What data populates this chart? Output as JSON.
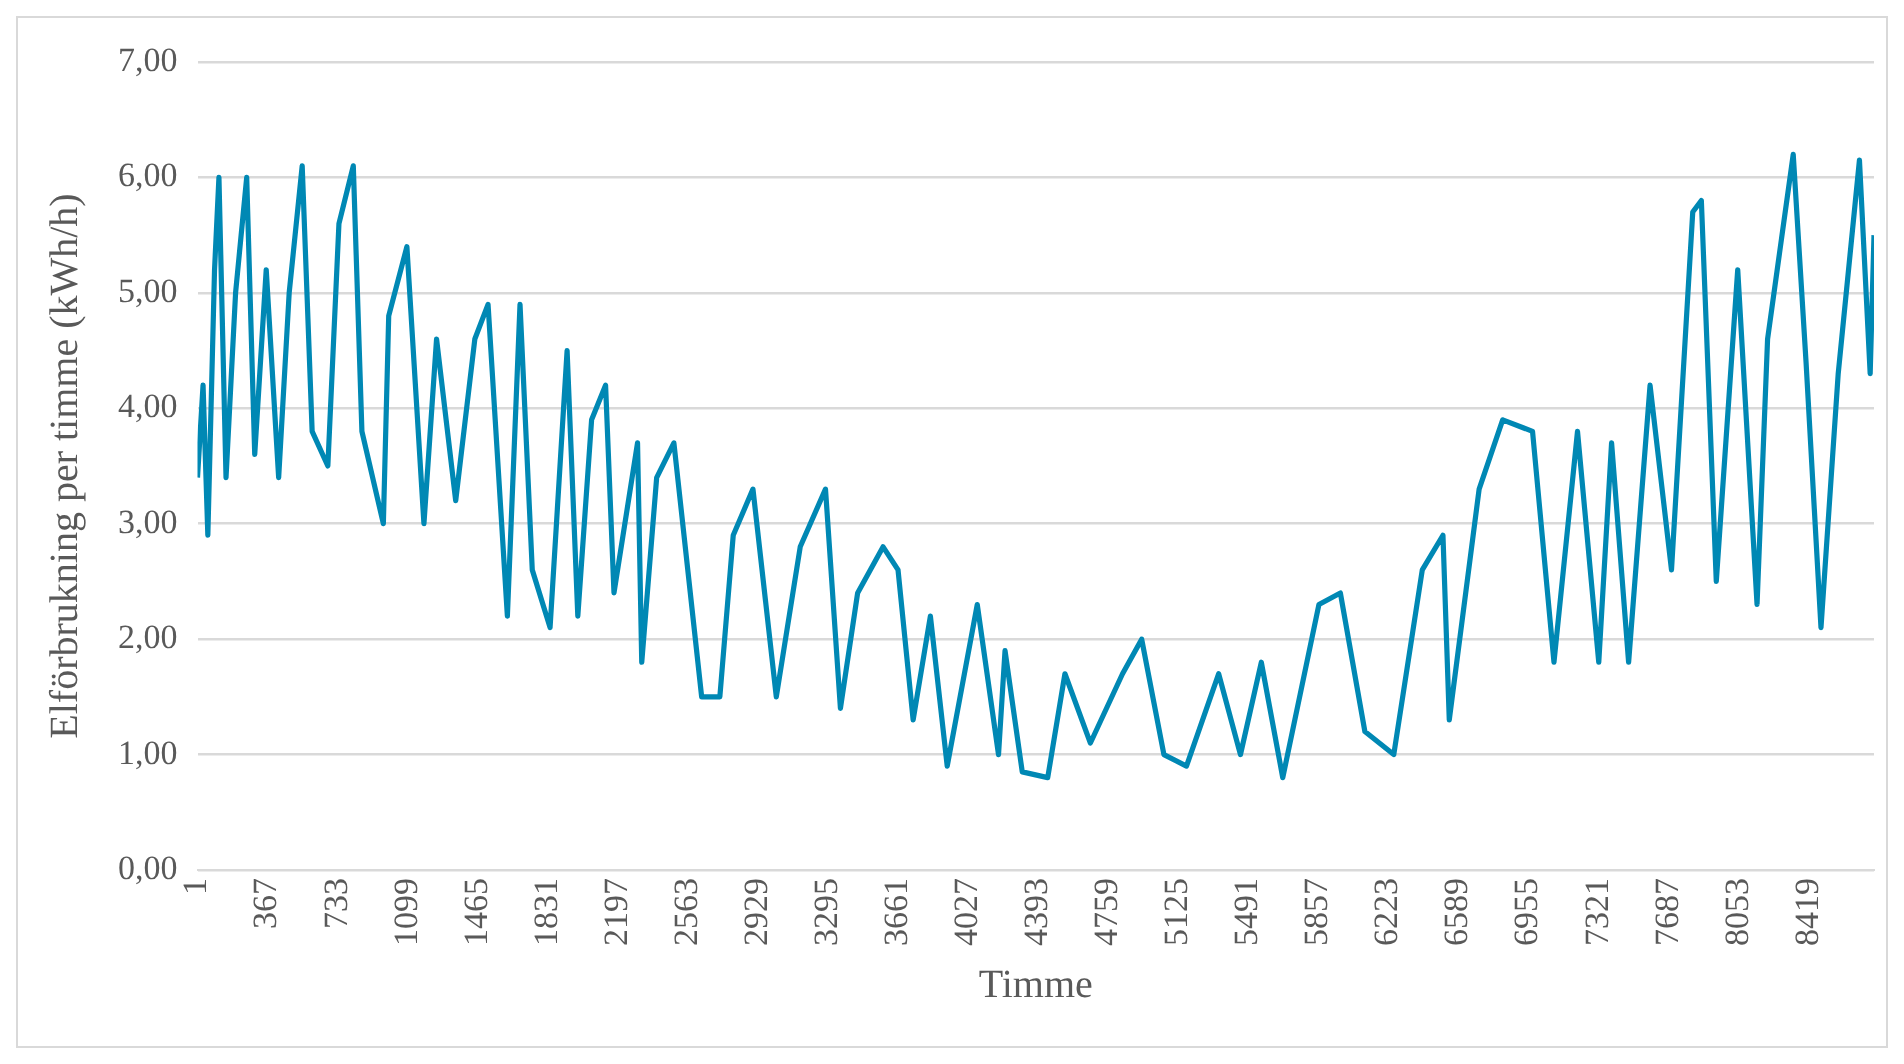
{
  "chart_data": {
    "type": "line",
    "xlabel": "Timme",
    "ylabel": "Elförbrukning per timme (kWh/h)",
    "x": [
      1,
      30,
      55,
      90,
      113,
      150,
      200,
      258,
      300,
      360,
      425,
      480,
      548,
      600,
      682,
      740,
      815,
      860,
      972,
      1000,
      1095,
      1184,
      1250,
      1350,
      1450,
      1519,
      1620,
      1686,
      1750,
      1843,
      1932,
      1988,
      2060,
      2133,
      2177,
      2300,
      2322,
      2400,
      2490,
      2635,
      2730,
      2800,
      2903,
      3025,
      3150,
      3282,
      3360,
      3450,
      3583,
      3661,
      3740,
      3830,
      3918,
      4075,
      4186,
      4220,
      4310,
      4443,
      4533,
      4666,
      4834,
      4934,
      5050,
      5168,
      5336,
      5450,
      5559,
      5671,
      5860,
      5972,
      6100,
      6251,
      6400,
      6508,
      6541,
      6697,
      6820,
      6976,
      7088,
      7211,
      7322,
      7389,
      7478,
      7590,
      7702,
      7813,
      7858,
      7936,
      8048,
      8149,
      8204,
      8338,
      8405,
      8483,
      8573,
      8684,
      8740,
      8760
    ],
    "series": [
      {
        "color": "#0088b4",
        "values": [
          3.4,
          4.2,
          2.9,
          5.2,
          6.0,
          3.4,
          5.0,
          6.0,
          3.6,
          5.2,
          3.4,
          5.0,
          6.1,
          3.8,
          3.5,
          5.6,
          6.1,
          3.8,
          3.0,
          4.8,
          5.4,
          3.0,
          4.6,
          3.2,
          4.6,
          4.9,
          2.2,
          4.9,
          2.6,
          2.1,
          4.5,
          2.2,
          3.9,
          4.2,
          2.4,
          3.7,
          1.8,
          3.4,
          3.7,
          1.5,
          1.5,
          2.9,
          3.3,
          1.5,
          2.8,
          3.3,
          1.4,
          2.4,
          2.8,
          2.6,
          1.3,
          2.2,
          0.9,
          2.3,
          1.0,
          1.9,
          0.85,
          0.8,
          1.7,
          1.1,
          1.7,
          2.0,
          1.0,
          0.9,
          1.7,
          1.0,
          1.8,
          0.8,
          2.3,
          2.4,
          1.2,
          1.0,
          2.6,
          2.9,
          1.3,
          3.3,
          3.9,
          3.8,
          1.8,
          3.8,
          1.8,
          3.7,
          1.8,
          4.2,
          2.6,
          5.7,
          5.8,
          2.5,
          5.2,
          2.3,
          4.6,
          6.2,
          4.4,
          2.1,
          4.3,
          6.15,
          4.3,
          5.5
        ]
      }
    ],
    "xlim": [
      1,
      8760
    ],
    "xticks": [
      1,
      367,
      733,
      1099,
      1465,
      1831,
      2197,
      2563,
      2929,
      3295,
      3661,
      4027,
      4393,
      4759,
      5125,
      5491,
      5857,
      6223,
      6589,
      6955,
      7321,
      7687,
      8053,
      8419
    ],
    "ylim": [
      0,
      7
    ],
    "yticks": [
      {
        "value": 0,
        "label": "0,00"
      },
      {
        "value": 1,
        "label": "1,00"
      },
      {
        "value": 2,
        "label": "2,00"
      },
      {
        "value": 3,
        "label": "3,00"
      },
      {
        "value": 4,
        "label": "4,00"
      },
      {
        "value": 5,
        "label": "5,00"
      },
      {
        "value": 6,
        "label": "6,00"
      },
      {
        "value": 7,
        "label": "7,00"
      }
    ],
    "grid": "y",
    "legend": false,
    "marker": "none",
    "line_style": "solid"
  }
}
